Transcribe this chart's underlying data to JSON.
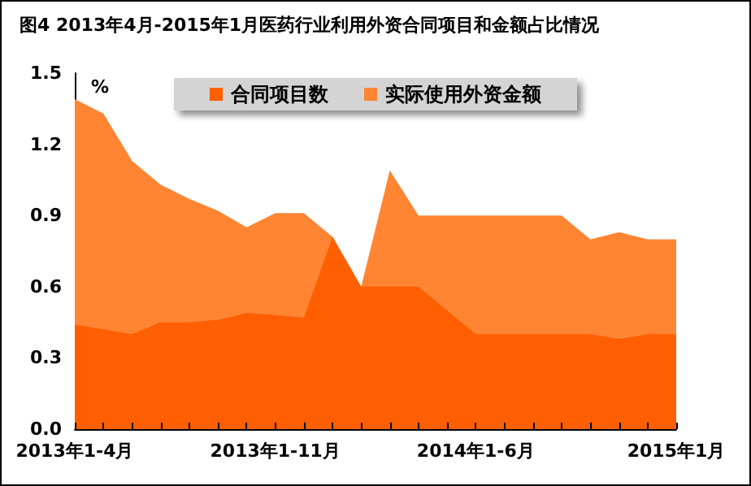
{
  "chart_data": {
    "type": "area",
    "title": "图4 2013年4月-2015年1月医药行业利用外资合同项目和金额占比情况",
    "ylabel": "%",
    "categories": [
      "2013年1-4月",
      null,
      null,
      null,
      null,
      null,
      null,
      "2013年1-11月",
      null,
      null,
      null,
      null,
      null,
      null,
      "2014年1-6月",
      null,
      null,
      null,
      null,
      null,
      null,
      "2015年1月"
    ],
    "series": [
      {
        "name": "合同项目数",
        "color": "#ff5f00",
        "values": [
          0.44,
          0.42,
          0.4,
          0.45,
          0.45,
          0.46,
          0.49,
          0.48,
          0.47,
          0.81,
          0.6,
          0.6,
          0.6,
          0.5,
          0.4,
          0.4,
          0.4,
          0.4,
          0.4,
          0.38,
          0.4,
          0.4
        ]
      },
      {
        "name": "实际使用外资金额",
        "color": "#ff8533",
        "values": [
          1.39,
          1.33,
          1.13,
          1.03,
          0.97,
          0.92,
          0.85,
          0.91,
          0.91,
          0.81,
          0.6,
          1.09,
          0.9,
          0.9,
          0.9,
          0.9,
          0.9,
          0.9,
          0.8,
          0.83,
          0.8,
          0.8
        ]
      }
    ],
    "ylim": [
      0,
      1.5
    ],
    "yticks": [
      {
        "value": 0,
        "label": "0.0"
      },
      0.3,
      0.6,
      0.9,
      1.2,
      1.5
    ],
    "legend": "top",
    "grid": false
  }
}
